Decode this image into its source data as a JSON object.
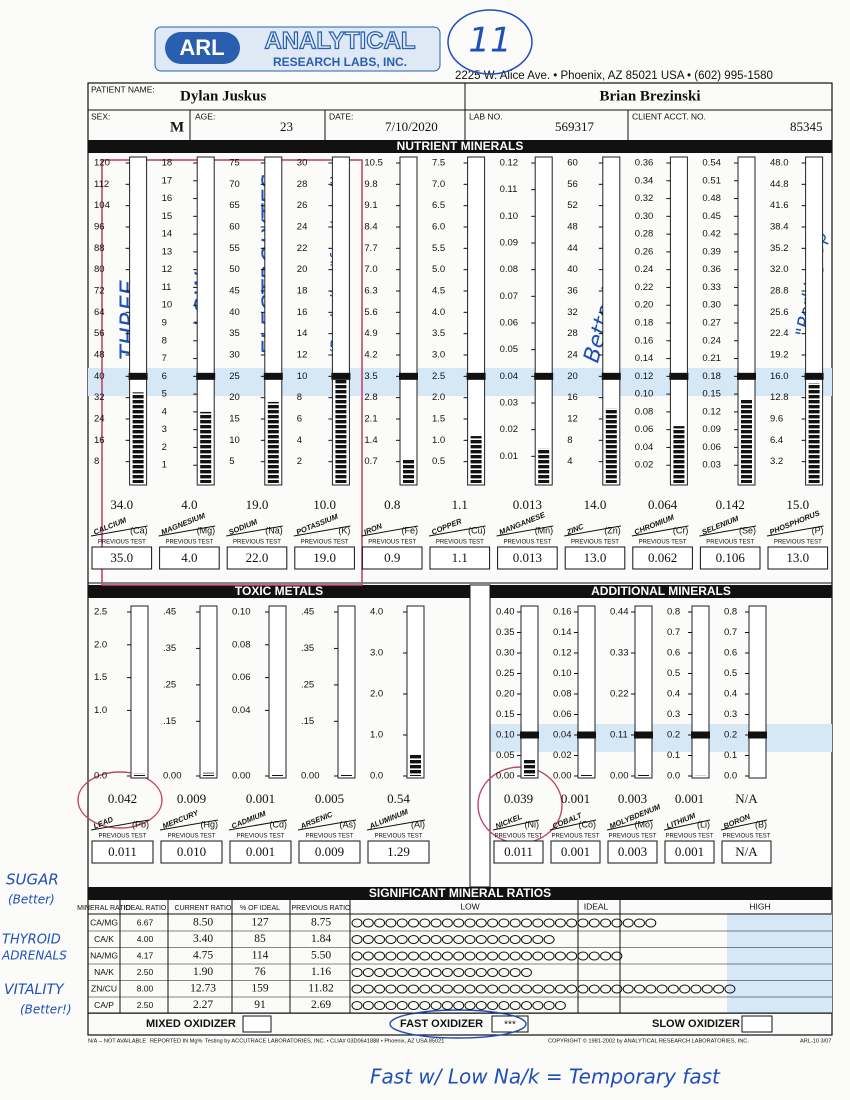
{
  "header": {
    "logo_initials": "ARL",
    "logo_line1": "ANALYTICAL",
    "logo_line2": "RESEARCH LABS, INC.",
    "address": "2225 W. Alice Ave. • Phoenix, AZ 85021 USA • (602) 995-1580"
  },
  "patient": {
    "patient_name_label": "PATIENT NAME:",
    "patient_name": "Dylan Juskus",
    "doctor": "Brian Brezinski",
    "sex_label": "SEX:",
    "sex": "M",
    "age_label": "AGE:",
    "age": "23",
    "date_label": "DATE:",
    "date": "7/10/2020",
    "lab_no_label": "LAB NO.",
    "lab_no": "569317",
    "client_label": "CLIENT ACCT. NO.",
    "client_no": "85345"
  },
  "previous_test_label": "PREVIOUS TEST",
  "nutrient": {
    "title": "NUTRIENT MINERALS",
    "columns": [
      {
        "name": "CALCIUM",
        "symbol": "(Ca)",
        "ticks": [
          "120",
          "112",
          "104",
          "96",
          "88",
          "80",
          "72",
          "64",
          "56",
          "48",
          "40",
          "32",
          "24",
          "16",
          "8"
        ],
        "result": "34.0",
        "previous": "35.0"
      },
      {
        "name": "MAGNESIUM",
        "symbol": "(Mg)",
        "ticks": [
          "18",
          "17",
          "16",
          "15",
          "14",
          "13",
          "12",
          "11",
          "10",
          "9",
          "8",
          "7",
          "6",
          "5",
          "4",
          "3",
          "2",
          "1"
        ],
        "result": "4.0",
        "previous": "4.0"
      },
      {
        "name": "SODIUM",
        "symbol": "(Na)",
        "ticks": [
          "75",
          "70",
          "65",
          "60",
          "55",
          "50",
          "45",
          "40",
          "35",
          "30",
          "25",
          "20",
          "15",
          "10",
          "5"
        ],
        "result": "19.0",
        "previous": "22.0"
      },
      {
        "name": "POTASSIUM",
        "symbol": "(K)",
        "ticks": [
          "30",
          "28",
          "26",
          "24",
          "22",
          "20",
          "18",
          "16",
          "14",
          "12",
          "10",
          "8",
          "6",
          "4",
          "2"
        ],
        "result": "10.0",
        "previous": "19.0"
      },
      {
        "name": "IRON",
        "symbol": "(Fe)",
        "ticks": [
          "10.5",
          "9.8",
          "9.1",
          "8.4",
          "7.7",
          "7.0",
          "6.3",
          "5.6",
          "4.9",
          "4.2",
          "3.5",
          "2.8",
          "2.1",
          "1.4",
          "0.7"
        ],
        "result": "0.8",
        "previous": "0.9"
      },
      {
        "name": "COPPER",
        "symbol": "(Cu)",
        "ticks": [
          "7.5",
          "7.0",
          "6.5",
          "6.0",
          "5.5",
          "5.0",
          "4.5",
          "4.0",
          "3.5",
          "3.0",
          "2.5",
          "2.0",
          "1.5",
          "1.0",
          "0.5"
        ],
        "result": "1.1",
        "previous": "1.1"
      },
      {
        "name": "MANGANESE",
        "symbol": "(Mn)",
        "ticks": [
          "0.12",
          "0.11",
          "0.10",
          "0.09",
          "0.08",
          "0.07",
          "0.06",
          "0.05",
          "0.04",
          "0.03",
          "0.02",
          "0.01"
        ],
        "result": "0.013",
        "previous": "0.013"
      },
      {
        "name": "ZINC",
        "symbol": "(Zn)",
        "ticks": [
          "60",
          "56",
          "52",
          "48",
          "44",
          "40",
          "36",
          "32",
          "28",
          "24",
          "20",
          "16",
          "12",
          "8",
          "4"
        ],
        "result": "14.0",
        "previous": "13.0"
      },
      {
        "name": "CHROMIUM",
        "symbol": "(Cr)",
        "ticks": [
          "0.36",
          "0.34",
          "0.32",
          "0.30",
          "0.28",
          "0.26",
          "0.24",
          "0.22",
          "0.20",
          "0.18",
          "0.16",
          "0.14",
          "0.12",
          "0.10",
          "0.08",
          "0.06",
          "0.04",
          "0.02"
        ],
        "result": "0.064",
        "previous": "0.062"
      },
      {
        "name": "SELENIUM",
        "symbol": "(Se)",
        "ticks": [
          "0.54",
          "0.51",
          "0.48",
          "0.45",
          "0.42",
          "0.39",
          "0.36",
          "0.33",
          "0.30",
          "0.27",
          "0.24",
          "0.21",
          "0.18",
          "0.15",
          "0.12",
          "0.09",
          "0.06",
          "0.03"
        ],
        "result": "0.142",
        "previous": "0.106"
      },
      {
        "name": "PHOSPHORUS",
        "symbol": "(P)",
        "ticks": [
          "48.0",
          "44.8",
          "41.6",
          "38.4",
          "35.2",
          "32.0",
          "28.8",
          "25.6",
          "22.4",
          "19.2",
          "16.0",
          "12.8",
          "9.6",
          "6.4",
          "3.2"
        ],
        "result": "15.0",
        "previous": "13.0"
      }
    ]
  },
  "toxic": {
    "title": "TOXIC METALS",
    "columns": [
      {
        "name": "LEAD",
        "symbol": "(Pb)",
        "ticks": [
          "2.5",
          "2.0",
          "1.5",
          "1.0",
          "0.0"
        ],
        "result": "0.042",
        "previous": "0.011"
      },
      {
        "name": "MERCURY",
        "symbol": "(Hg)",
        "ticks": [
          ".45",
          ".35",
          ".25",
          ".15",
          "0.00"
        ],
        "result": "0.009",
        "previous": "0.010"
      },
      {
        "name": "CADMIUM",
        "symbol": "(Cd)",
        "ticks": [
          "0.10",
          "0.08",
          "0.06",
          "0.04",
          "0.00"
        ],
        "result": "0.001",
        "previous": "0.001"
      },
      {
        "name": "ARSENIC",
        "symbol": "(As)",
        "ticks": [
          ".45",
          ".35",
          ".25",
          ".15",
          "0.00"
        ],
        "result": "0.005",
        "previous": "0.009"
      },
      {
        "name": "ALUMINUM",
        "symbol": "(Al)",
        "ticks": [
          "4.0",
          "3.0",
          "2.0",
          "1.0",
          "0.0"
        ],
        "result": "0.54",
        "previous": "1.29"
      }
    ]
  },
  "additional": {
    "title": "ADDITIONAL MINERALS",
    "columns": [
      {
        "name": "NICKEL",
        "symbol": "(Ni)",
        "ticks": [
          "0.40",
          "0.35",
          "0.30",
          "0.25",
          "0.20",
          "0.15",
          "0.10",
          "0.05",
          "0.00"
        ],
        "result": "0.039",
        "previous": "0.011"
      },
      {
        "name": "COBALT",
        "symbol": "(Co)",
        "ticks": [
          "0.16",
          "0.14",
          "0.12",
          "0.10",
          "0.08",
          "0.06",
          "0.04",
          "0.02",
          "0.00"
        ],
        "result": "0.001",
        "previous": "0.001"
      },
      {
        "name": "MOLYBDENUM",
        "symbol": "(Mo)",
        "ticks": [
          "0.44",
          "0.33",
          "0.22",
          "0.11",
          "0.00"
        ],
        "result": "0.003",
        "previous": "0.003"
      },
      {
        "name": "LITHIUM",
        "symbol": "(Li)",
        "ticks": [
          "0.8",
          "0.7",
          "0.6",
          "0.5",
          "0.4",
          "0.3",
          "0.2",
          "0.1",
          "0.0"
        ],
        "result": "0.001",
        "previous": "0.001"
      },
      {
        "name": "BORON",
        "symbol": "(B)",
        "ticks": [
          "0.8",
          "0.7",
          "0.6",
          "0.5",
          "0.4",
          "0.3",
          "0.2",
          "0.1",
          "0.0"
        ],
        "result": "N/A",
        "previous": "N/A"
      }
    ]
  },
  "ratios": {
    "title": "SIGNIFICANT MINERAL RATIOS",
    "headers": [
      "MINERAL RATIO",
      "IDEAL RATIO",
      "CURRENT RATIO",
      "% OF IDEAL",
      "PREVIOUS RATIO"
    ],
    "scale_labels": [
      "LOW",
      "IDEAL",
      "HIGH"
    ],
    "rows": [
      [
        "CA/MG",
        "6.67",
        "8.50",
        "127",
        "8.75"
      ],
      [
        "CA/K",
        "4.00",
        "3.40",
        "85",
        "1.84"
      ],
      [
        "NA/MG",
        "4.17",
        "4.75",
        "114",
        "5.50"
      ],
      [
        "NA/K",
        "2.50",
        "1.90",
        "76",
        "1.16"
      ],
      [
        "ZN/CU",
        "8.00",
        "12.73",
        "159",
        "11.82"
      ],
      [
        "CA/P",
        "2.50",
        "2.27",
        "91",
        "2.69"
      ]
    ]
  },
  "oxidizer": {
    "mixed": "MIXED OXIDIZER",
    "fast": "FAST OXIDIZER",
    "fast_mark": "***",
    "slow": "SLOW OXIDIZER"
  },
  "footer": [
    "N/A -- NOT AVAILABLE",
    "REPORTED IN Mg%",
    "Testing by ACCUTRACE LABORATORIES, INC. • CLIA# 03D0641888 • Phoenix, AZ USA 85021",
    "COPYRIGHT © 1981-2002 by ANALYTICAL RESEARCH LABORATORIES, INC.",
    "ARL-10 3/07"
  ],
  "annotations": {
    "page_number": "11",
    "three": "THREE",
    "low": "LOW",
    "electrolytes": "ELECTROLYTES",
    "borderline": "(Borderline \"four Lows\")",
    "better": "Better!",
    "perking_up": "\"Perking Up\"",
    "sugar": "SUGAR",
    "sugar_better": "(Better)",
    "thyroid": "THYROID",
    "adrenals": "ADRENALS",
    "vitality": "VITALITY",
    "vitality_better": "(Better!)",
    "bottom_note": "Fast w/ Low Na/k = Temporary fast"
  }
}
